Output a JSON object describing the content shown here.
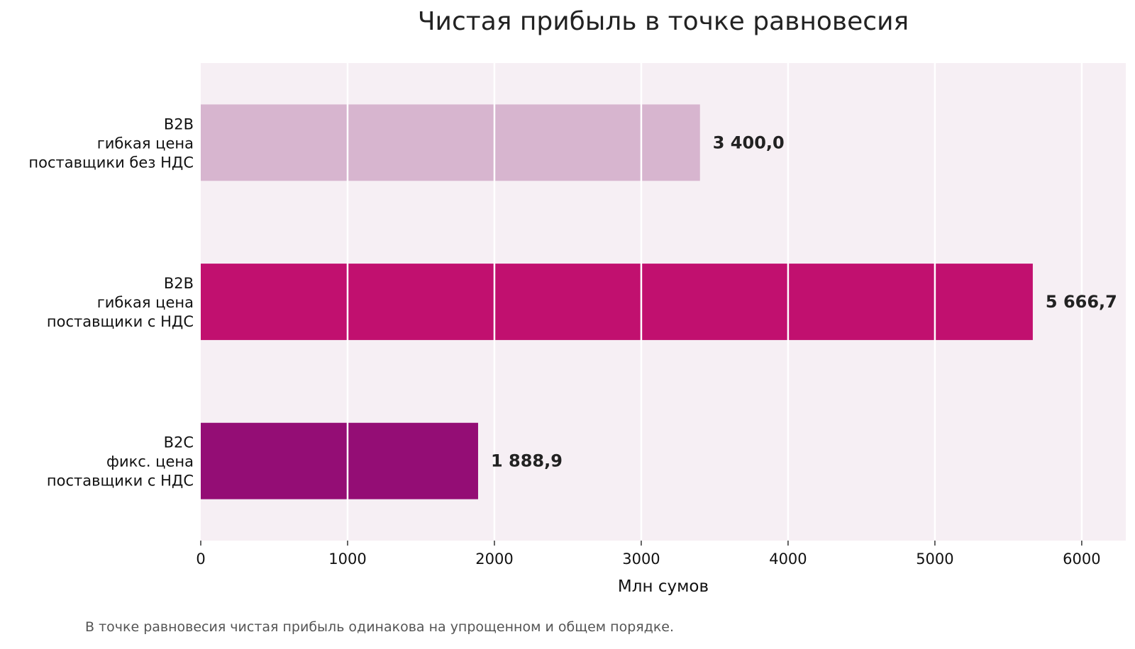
{
  "chart_data": {
    "type": "bar",
    "orientation": "horizontal",
    "title": "Чистая прибыль в точке равновесия",
    "xlabel": "Млн сумов",
    "ylabel": "",
    "xlim": [
      0,
      6300
    ],
    "xticks": [
      0,
      1000,
      2000,
      3000,
      4000,
      5000,
      6000
    ],
    "xtick_labels": [
      "0",
      "1000",
      "2000",
      "3000",
      "4000",
      "5000",
      "6000"
    ],
    "grid": true,
    "legend": "none",
    "plot_background": "#f6eff4",
    "categories": [
      [
        "B2B",
        "гибкая цена",
        "поставщики без НДС"
      ],
      [
        "B2B",
        "гибкая цена",
        "поставщики с НДС"
      ],
      [
        "B2C",
        "фикс. цена",
        "поставщики с НДС"
      ]
    ],
    "values": [
      3400.0,
      5666.7,
      1888.9
    ],
    "value_labels": [
      "3 400,0",
      "5 666,7",
      "1 888,9"
    ],
    "colors": [
      "#d7b5cf",
      "#c1106f",
      "#940d75"
    ]
  },
  "note": "В точке равновесия чистая прибыль одинакова на упрощенном и общем порядке."
}
